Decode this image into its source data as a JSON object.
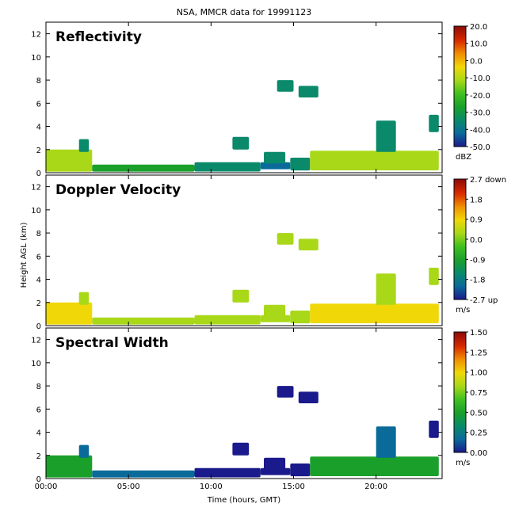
{
  "figure_title": "NSA, MMCR data for 19991123",
  "xlabel": "Time (hours, GMT)",
  "ylabel": "Height AGL (km)",
  "colors": {
    "colormap": [
      "#1a1a8c",
      "#0a6a9a",
      "#0a8a6a",
      "#1aa02a",
      "#40c020",
      "#a8d818",
      "#f0d808",
      "#f09000",
      "#d82a00",
      "#8c0a0a"
    ],
    "background": "#ffffff",
    "frame": "#000000"
  },
  "chart_data": [
    {
      "type": "heatmap",
      "title": "Reflectivity",
      "xlabel": "",
      "ylabel": "",
      "x_ticks": [
        "00:00",
        "05:00",
        "10:00",
        "15:00",
        "20:00"
      ],
      "x_tick_values": [
        0,
        5,
        10,
        15,
        20
      ],
      "xlim": [
        0,
        24
      ],
      "y_ticks": [
        0,
        2,
        4,
        6,
        8,
        10,
        12
      ],
      "ylim": [
        0,
        13
      ],
      "colorbar": {
        "ticks": [
          "20.0",
          "10.0",
          "0.0",
          "-10.0",
          "-20.0",
          "-30.0",
          "-40.0",
          "-50.0"
        ],
        "unit": "dBZ",
        "range": [
          -50,
          20
        ]
      },
      "regions": [
        {
          "t0": 0.0,
          "t1": 2.8,
          "h0": 0.1,
          "h1": 2.0,
          "value": -10
        },
        {
          "t0": 2.8,
          "t1": 9.0,
          "h0": 0.1,
          "h1": 0.7,
          "value": -25
        },
        {
          "t0": 9.0,
          "t1": 13.0,
          "h0": 0.1,
          "h1": 0.9,
          "value": -35
        },
        {
          "t0": 13.0,
          "t1": 14.8,
          "h0": 0.3,
          "h1": 0.9,
          "value": -40
        },
        {
          "t0": 14.8,
          "t1": 16.0,
          "h0": 0.2,
          "h1": 1.3,
          "value": -35
        },
        {
          "t0": 16.0,
          "t1": 23.8,
          "h0": 0.2,
          "h1": 1.9,
          "value": -15
        },
        {
          "t0": 11.3,
          "t1": 12.3,
          "h0": 2.0,
          "h1": 3.1,
          "value": -35
        },
        {
          "t0": 13.2,
          "t1": 14.5,
          "h0": 0.8,
          "h1": 1.8,
          "value": -35
        },
        {
          "t0": 14.0,
          "t1": 15.0,
          "h0": 7.0,
          "h1": 8.0,
          "value": -35
        },
        {
          "t0": 15.3,
          "t1": 16.5,
          "h0": 6.5,
          "h1": 7.5,
          "value": -35
        },
        {
          "t0": 20.0,
          "t1": 21.2,
          "h0": 1.8,
          "h1": 4.5,
          "value": -30
        },
        {
          "t0": 23.2,
          "t1": 23.8,
          "h0": 3.5,
          "h1": 5.0,
          "value": -30
        },
        {
          "t0": 2.0,
          "t1": 2.6,
          "h0": 1.8,
          "h1": 2.9,
          "value": -30
        }
      ]
    },
    {
      "type": "heatmap",
      "title": "Doppler Velocity",
      "xlabel": "",
      "ylabel": "",
      "x_ticks": [
        "00:00",
        "05:00",
        "10:00",
        "15:00",
        "20:00"
      ],
      "x_tick_values": [
        0,
        5,
        10,
        15,
        20
      ],
      "xlim": [
        0,
        24
      ],
      "y_ticks": [
        0,
        2,
        4,
        6,
        8,
        10,
        12
      ],
      "ylim": [
        0,
        13
      ],
      "colorbar": {
        "ticks": [
          "2.7 down",
          "1.8",
          "0.9",
          "0.0",
          "-0.9",
          "-1.8",
          "-2.7 up"
        ],
        "unit": "m/s",
        "range": [
          -2.7,
          2.7
        ]
      },
      "regions": [
        {
          "t0": 0.0,
          "t1": 2.8,
          "h0": 0.1,
          "h1": 2.0,
          "value": 0.6
        },
        {
          "t0": 2.8,
          "t1": 9.0,
          "h0": 0.1,
          "h1": 0.7,
          "value": 0.5
        },
        {
          "t0": 9.0,
          "t1": 13.0,
          "h0": 0.1,
          "h1": 0.9,
          "value": 0.5
        },
        {
          "t0": 13.0,
          "t1": 14.8,
          "h0": 0.3,
          "h1": 0.9,
          "value": 0.5
        },
        {
          "t0": 14.8,
          "t1": 16.0,
          "h0": 0.2,
          "h1": 1.3,
          "value": 0.5
        },
        {
          "t0": 16.0,
          "t1": 23.8,
          "h0": 0.2,
          "h1": 1.9,
          "value": 0.7
        },
        {
          "t0": 11.3,
          "t1": 12.3,
          "h0": 2.0,
          "h1": 3.1,
          "value": 0.5
        },
        {
          "t0": 13.2,
          "t1": 14.5,
          "h0": 0.8,
          "h1": 1.8,
          "value": 0.5
        },
        {
          "t0": 14.0,
          "t1": 15.0,
          "h0": 7.0,
          "h1": 8.0,
          "value": 0.5
        },
        {
          "t0": 15.3,
          "t1": 16.5,
          "h0": 6.5,
          "h1": 7.5,
          "value": 0.5
        },
        {
          "t0": 20.0,
          "t1": 21.2,
          "h0": 1.8,
          "h1": 4.5,
          "value": 0.5
        },
        {
          "t0": 23.2,
          "t1": 23.8,
          "h0": 3.5,
          "h1": 5.0,
          "value": 0.5
        },
        {
          "t0": 2.0,
          "t1": 2.6,
          "h0": 1.8,
          "h1": 2.9,
          "value": 0.5
        }
      ]
    },
    {
      "type": "heatmap",
      "title": "Spectral Width",
      "xlabel": "Time (hours, GMT)",
      "ylabel": "",
      "x_ticks": [
        "00:00",
        "05:00",
        "10:00",
        "15:00",
        "20:00"
      ],
      "x_tick_values": [
        0,
        5,
        10,
        15,
        20
      ],
      "xlim": [
        0,
        24
      ],
      "y_ticks": [
        0,
        2,
        4,
        6,
        8,
        10,
        12
      ],
      "ylim": [
        0,
        13
      ],
      "colorbar": {
        "ticks": [
          "1.50",
          "1.25",
          "1.00",
          "0.75",
          "0.50",
          "0.25",
          "0.00"
        ],
        "unit": "m/s",
        "range": [
          0,
          1.5
        ]
      },
      "regions": [
        {
          "t0": 0.0,
          "t1": 2.8,
          "h0": 0.1,
          "h1": 2.0,
          "value": 0.5
        },
        {
          "t0": 2.8,
          "t1": 9.0,
          "h0": 0.1,
          "h1": 0.7,
          "value": 0.2
        },
        {
          "t0": 9.0,
          "t1": 13.0,
          "h0": 0.1,
          "h1": 0.9,
          "value": 0.1
        },
        {
          "t0": 13.0,
          "t1": 14.8,
          "h0": 0.3,
          "h1": 0.9,
          "value": 0.1
        },
        {
          "t0": 14.8,
          "t1": 16.0,
          "h0": 0.2,
          "h1": 1.3,
          "value": 0.1
        },
        {
          "t0": 16.0,
          "t1": 23.8,
          "h0": 0.2,
          "h1": 1.9,
          "value": 0.5
        },
        {
          "t0": 11.3,
          "t1": 12.3,
          "h0": 2.0,
          "h1": 3.1,
          "value": 0.1
        },
        {
          "t0": 13.2,
          "t1": 14.5,
          "h0": 0.8,
          "h1": 1.8,
          "value": 0.1
        },
        {
          "t0": 14.0,
          "t1": 15.0,
          "h0": 7.0,
          "h1": 8.0,
          "value": 0.1
        },
        {
          "t0": 15.3,
          "t1": 16.5,
          "h0": 6.5,
          "h1": 7.5,
          "value": 0.1
        },
        {
          "t0": 20.0,
          "t1": 21.2,
          "h0": 1.8,
          "h1": 4.5,
          "value": 0.2
        },
        {
          "t0": 23.2,
          "t1": 23.8,
          "h0": 3.5,
          "h1": 5.0,
          "value": 0.1
        },
        {
          "t0": 2.0,
          "t1": 2.6,
          "h0": 1.8,
          "h1": 2.9,
          "value": 0.3
        }
      ]
    }
  ]
}
